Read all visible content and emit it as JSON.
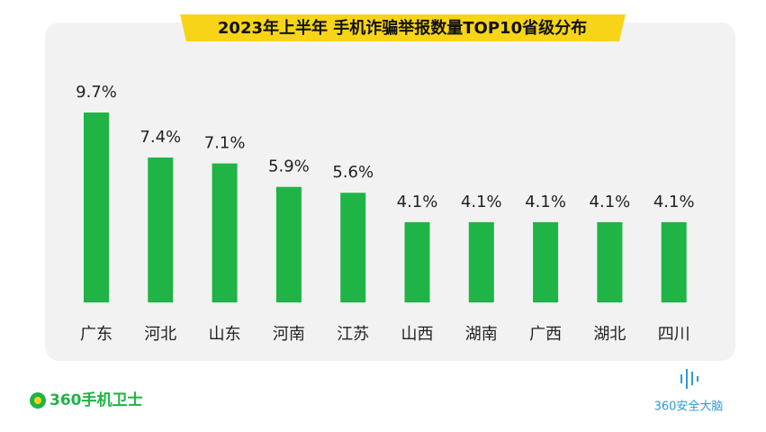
{
  "chart_data": {
    "type": "bar",
    "title": "2023年上半年 手机诈骗举报数量TOP10省级分布",
    "categories": [
      "广东",
      "河北",
      "山东",
      "河南",
      "江苏",
      "山西",
      "湖南",
      "广西",
      "湖北",
      "四川"
    ],
    "values": [
      9.7,
      7.4,
      7.1,
      5.9,
      5.6,
      4.1,
      4.1,
      4.1,
      4.1,
      4.1
    ],
    "value_labels": [
      "9.7%",
      "7.4%",
      "7.1%",
      "5.9%",
      "5.6%",
      "4.1%",
      "4.1%",
      "4.1%",
      "4.1%",
      "4.1%"
    ],
    "color": "#1fb445",
    "ylim": [
      0,
      10
    ]
  },
  "brand_left": "360手机卫士",
  "brand_right": "360安全大脑"
}
